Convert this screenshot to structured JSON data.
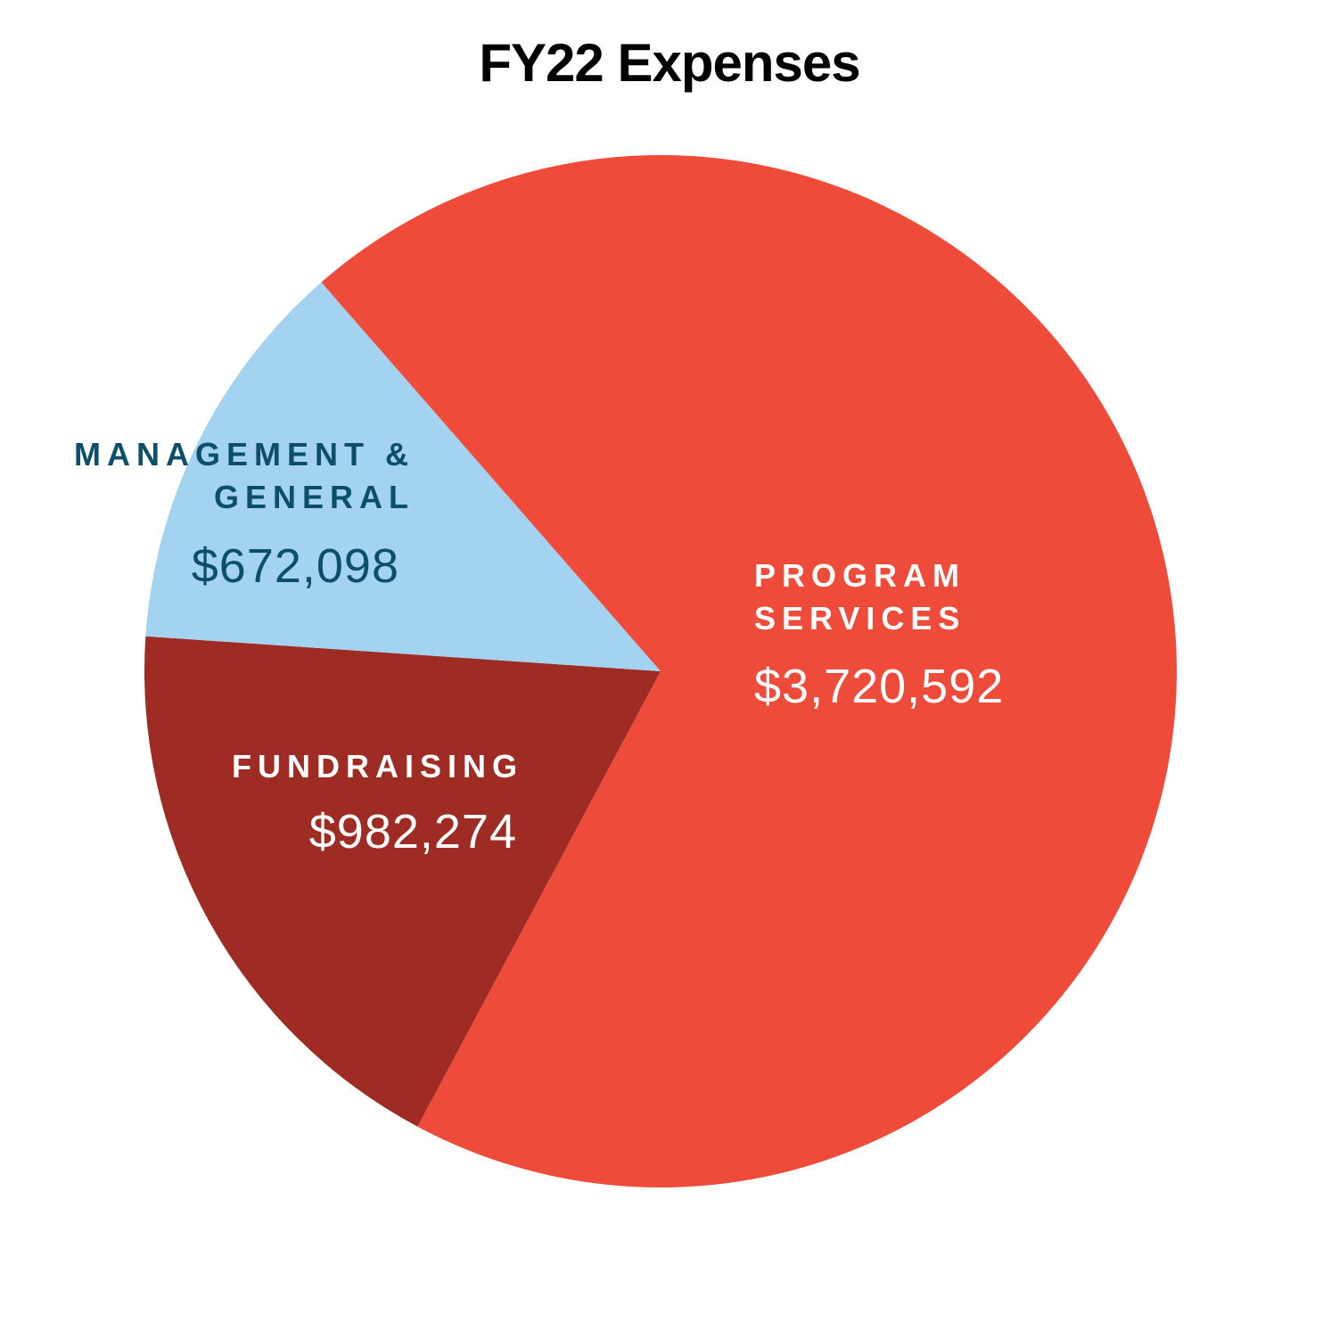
{
  "chart_data": {
    "type": "pie",
    "title": "FY22 Expenses",
    "categories": [
      "PROGRAM SERVICES",
      "FUNDRAISING",
      "MANAGEMENT & GENERAL"
    ],
    "values": [
      3720592,
      982274,
      672098
    ],
    "value_labels": [
      "$3,720,592",
      "$982,274",
      "$672,098"
    ],
    "colors": [
      "#ee4b3a",
      "#9e2b24",
      "#a3d3f1"
    ]
  }
}
